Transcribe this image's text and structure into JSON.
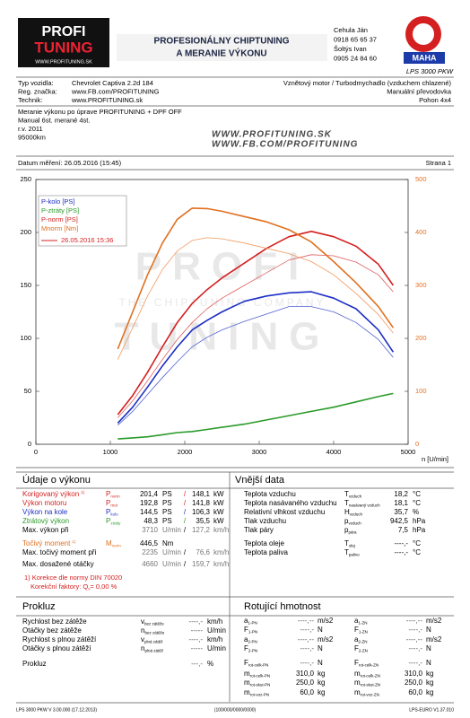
{
  "header": {
    "logo_top": "PROFI",
    "logo_bottom": "TUNING",
    "logo_url": "WWW.PROFITUNING.SK",
    "banner_1": "PROFESIONÁLNY CHIPTUNING",
    "banner_2": "A MERANIE VÝKONU",
    "contacts": [
      "Cehula Ján",
      "0918 65 65 37",
      "Šoltýs Ivan",
      "0905 24 84 60"
    ],
    "maha": "MAHA",
    "model": "LPS 3000 PKW"
  },
  "vehicle": {
    "left": [
      [
        "Typ vozidla:",
        "Chevrolet Captiva 2.2d 184"
      ],
      [
        "Reg. značka:",
        "www.FB.com/PROFITUNING"
      ],
      [
        "Technik:",
        "www.PROFITUNING.sk"
      ]
    ],
    "right": [
      "Vznětový motor / Turbodmychadlo (vzduchem chlazené)",
      "Manuální převodovka",
      "Pohon 4x4"
    ]
  },
  "notes": [
    "Meranie výkonu po úprave PROFITUNING + DPF OFF",
    "Manual 6st. merané 4st.",
    "r.v. 2011",
    "95000km"
  ],
  "urls": [
    "WWW.PROFITUNING.SK",
    "WWW.FB.COM/PROFITUNING"
  ],
  "date": "Datum měření: 26.05.2016 (15:45)",
  "page_no": "Strana 1",
  "watermark": [
    "PROFI",
    "THE CHIPTUNING COMPANY",
    "TUNING"
  ],
  "chart_data": {
    "type": "line",
    "xlabel": "n [U/min]",
    "legend_date": "26.05.2016 15:36",
    "legend_date_color": "#d42020",
    "x": [
      1100,
      1300,
      1500,
      1700,
      1900,
      2100,
      2300,
      2500,
      2800,
      3100,
      3400,
      3700,
      4000,
      4300,
      4600,
      4800
    ],
    "xlim": [
      0,
      5000
    ],
    "xticks": [
      0,
      1000,
      2000,
      3000,
      4000,
      5000
    ],
    "ylim": [
      0,
      250
    ],
    "yticks": [
      0,
      50,
      100,
      150,
      200,
      250
    ],
    "y2lim": [
      0,
      500
    ],
    "y2ticks": [
      0,
      100,
      200,
      300,
      400,
      500
    ],
    "y2_color": "#e07020",
    "grid": false,
    "series": [
      {
        "name": "P-kolo [PS]",
        "color": "#1c2fc4",
        "line_width": 1.6,
        "values": [
          20,
          35,
          54,
          74,
          92,
          108,
          117,
          125,
          135,
          140,
          143,
          144,
          138,
          128,
          108,
          87
        ]
      },
      {
        "name": "P-ztráty [PS]",
        "color": "#2a9a2a",
        "line_width": 1.6,
        "values": [
          5,
          6,
          7,
          9,
          11,
          12,
          14,
          16,
          19,
          23,
          27,
          31,
          35,
          40,
          45,
          48
        ]
      },
      {
        "name": "P-norm [PS]",
        "color": "#d42020",
        "line_width": 1.6,
        "values": [
          28,
          46,
          68,
          92,
          115,
          133,
          146,
          157,
          171,
          185,
          196,
          201,
          196,
          187,
          170,
          150
        ]
      },
      {
        "name": "Mnorm [Nm]",
        "color": "#e07020",
        "line_width": 1.6,
        "axis": "y2",
        "values": [
          180,
          250,
          320,
          380,
          425,
          446,
          445,
          440,
          430,
          420,
          405,
          382,
          345,
          305,
          260,
          220
        ]
      },
      {
        "color": "#5060d0",
        "line_width": 0.8,
        "values": [
          18,
          31,
          47,
          63,
          78,
          92,
          101,
          108,
          116,
          123,
          130,
          130,
          125,
          115,
          99,
          82
        ]
      },
      {
        "color": "#e06060",
        "line_width": 0.8,
        "values": [
          25,
          41,
          60,
          80,
          99,
          115,
          128,
          138,
          150,
          162,
          174,
          179,
          178,
          172,
          160,
          144
        ]
      },
      {
        "color": "#f09a60",
        "line_width": 0.8,
        "axis": "y2",
        "values": [
          160,
          220,
          280,
          330,
          365,
          385,
          390,
          388,
          380,
          370,
          360,
          345,
          320,
          285,
          245,
          210
        ]
      }
    ]
  },
  "performance": {
    "title": "Údaje o výkonu",
    "separator": "/",
    "rows": [
      {
        "label": "Korigovaný výkon",
        "note": "1)",
        "sym": "P",
        "sub": "norm",
        "v1": "201,4",
        "u1": "PS",
        "v2": "148,1",
        "u2": "kW",
        "color": "#d42020",
        "number_color": "#000"
      },
      {
        "label": "Výkon motoru",
        "sym": "P",
        "sub": "mot",
        "v1": "192,8",
        "u1": "PS",
        "v2": "141,8",
        "u2": "kW",
        "color": "#d42020",
        "number_color": "#000"
      },
      {
        "label": "Výkon na kole",
        "sym": "P",
        "sub": "kolo",
        "v1": "144,5",
        "u1": "PS",
        "v2": "106,3",
        "u2": "kW",
        "color": "#1c2fc4",
        "number_color": "#000"
      },
      {
        "label": "Ztrátový výkon",
        "sym": "P",
        "sub": "ztráty",
        "v1": "48,3",
        "u1": "PS",
        "v2": "35,5",
        "u2": "kW",
        "color": "#2a9a2a",
        "number_color": "#000"
      },
      {
        "label": "Max. výkon při",
        "v1": "3710",
        "u1": "U/min",
        "v2": "127,2",
        "u2": "km/h",
        "color": "#000",
        "number_color": "#777"
      },
      {
        "label": "Točivý moment",
        "note": "1)",
        "sym": "M",
        "sub": "norm",
        "v1": "446,5",
        "u1": "Nm",
        "color": "#e07020",
        "number_color": "#000"
      },
      {
        "label": "Max. točivý moment při",
        "v1": "2235",
        "u1": "U/min",
        "v2": "76,6",
        "u2": "km/h",
        "color": "#000",
        "number_color": "#777"
      },
      {
        "label": "Max. dosažené otáčky",
        "v1": "4660",
        "u1": "U/min",
        "v2": "159,7",
        "u2": "km/h",
        "color": "#000",
        "number_color": "#777"
      }
    ],
    "footnote_1": "1) Korekce dle normy DIN 70020",
    "footnote_2": "Korekční faktory: Q",
    "footnote_2_sub": "v",
    "footnote_2_end": " = 0,00 %"
  },
  "ambient": {
    "title": "Vnější data",
    "rows": [
      {
        "label": "Teplota vzduchu",
        "sym": "T",
        "sub": "vzduch",
        "value": "18,2",
        "unit": "°C"
      },
      {
        "label": "Teplota nasávaného vzduchu",
        "sym": "T",
        "sub": "nasávaný vzduch",
        "value": "18,1",
        "unit": "°C"
      },
      {
        "label": "Relativní vlhkost vzduchu",
        "sym": "H",
        "sub": "vzduch",
        "value": "35,7",
        "unit": "%"
      },
      {
        "label": "Tlak vzduchu",
        "sym": "p",
        "sub": "vzduch",
        "value": "942,5",
        "unit": "hPa"
      },
      {
        "label": "Tlak páry",
        "sym": "p",
        "sub": "pára",
        "value": "7,5",
        "unit": "hPa"
      },
      {
        "label": "Teplota oleje",
        "sym": "T",
        "sub": "olej",
        "value": "----,-",
        "unit": "°C"
      },
      {
        "label": "Teplota paliva",
        "sym": "T",
        "sub": "palivo",
        "value": "----,-",
        "unit": "°C"
      }
    ]
  },
  "slip": {
    "title": "Prokluz",
    "rows": [
      {
        "label": "Rychlost bez zátěže",
        "sym": "v",
        "sub": "bez zátěže",
        "value": "----,-",
        "unit": "km/h"
      },
      {
        "label": "Otáčky bez zátěže",
        "sym": "n",
        "sub": "bez zátěže",
        "value": "-----",
        "unit": "U/min"
      },
      {
        "label": "Rychlost s plnou zátěží",
        "sym": "v",
        "sub": "plná zátěž",
        "value": "----,-",
        "unit": "km/h"
      },
      {
        "label": "Otáčky s plnou zátěží",
        "sym": "n",
        "sub": "plná zátěž",
        "value": "-----",
        "unit": "U/min"
      },
      {
        "label": "Prokluz",
        "value": "---,-",
        "unit": "%"
      }
    ]
  },
  "rotating": {
    "title": "Rotující hmotnost",
    "left": [
      {
        "sym": "a",
        "sub": "1-PN",
        "value": "----,--",
        "unit": "m/s2"
      },
      {
        "sym": "F",
        "sub": "1-PN",
        "value": "----,-",
        "unit": "N"
      },
      {
        "sym": "a",
        "sub": "2-PN",
        "value": "----,--",
        "unit": "m/s2"
      },
      {
        "sym": "F",
        "sub": "2-PN",
        "value": "----,-",
        "unit": "N"
      },
      {
        "sym": "F",
        "sub": "rot-celk-PN",
        "value": "----,-",
        "unit": "N"
      },
      {
        "sym": "m",
        "sub": "rot-celk-PN",
        "value": "310,0",
        "unit": "kg"
      },
      {
        "sym": "m",
        "sub": "rot-skut-PN",
        "value": "250,0",
        "unit": "kg"
      },
      {
        "sym": "m",
        "sub": "rot-voz-PN",
        "value": "60,0",
        "unit": "kg"
      }
    ],
    "right": [
      {
        "sym": "a",
        "sub": "1-ZN",
        "value": "----,--",
        "unit": "m/s2"
      },
      {
        "sym": "F",
        "sub": "1-ZN",
        "value": "----,-",
        "unit": "N"
      },
      {
        "sym": "a",
        "sub": "2-ZN",
        "value": "----,--",
        "unit": "m/s2"
      },
      {
        "sym": "F",
        "sub": "2-ZN",
        "value": "----,-",
        "unit": "N"
      },
      {
        "sym": "F",
        "sub": "rot-celk-ZN",
        "value": "----,-",
        "unit": "N"
      },
      {
        "sym": "m",
        "sub": "rot-celk-ZN",
        "value": "310,0",
        "unit": "kg"
      },
      {
        "sym": "m",
        "sub": "rot-skut-ZN",
        "value": "250,0",
        "unit": "kg"
      },
      {
        "sym": "m",
        "sub": "rot-voz-ZN",
        "value": "60,0",
        "unit": "kg"
      }
    ]
  },
  "footer": [
    "LPS 3000 PKW V 3.00.000 (17.12.2013)",
    "(100/000/0000/0000)",
    "LPS-EURO V1.37.010"
  ]
}
